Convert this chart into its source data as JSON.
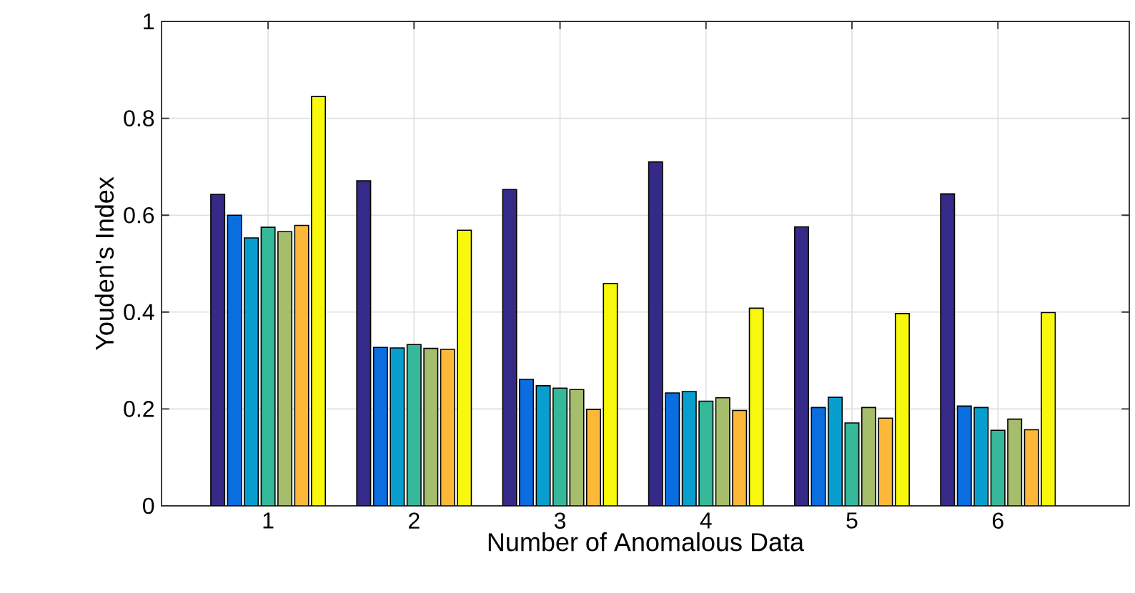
{
  "chart_data": {
    "type": "bar",
    "xlabel": "Number of Anomalous Data",
    "ylabel": "Youden's Index",
    "categories": [
      "1",
      "2",
      "3",
      "4",
      "5",
      "6"
    ],
    "series": [
      {
        "color": "#352a87",
        "values": [
          0.643,
          0.671,
          0.653,
          0.71,
          0.576,
          0.644
        ]
      },
      {
        "color": "#0a6ee0",
        "values": [
          0.6,
          0.327,
          0.261,
          0.233,
          0.203,
          0.206
        ]
      },
      {
        "color": "#089fcf",
        "values": [
          0.553,
          0.326,
          0.248,
          0.236,
          0.224,
          0.203
        ]
      },
      {
        "color": "#36b89a",
        "values": [
          0.575,
          0.333,
          0.243,
          0.216,
          0.171,
          0.156
        ]
      },
      {
        "color": "#a6bd6c",
        "values": [
          0.566,
          0.325,
          0.24,
          0.223,
          0.203,
          0.179
        ]
      },
      {
        "color": "#fdb83a",
        "values": [
          0.579,
          0.323,
          0.199,
          0.197,
          0.181,
          0.157
        ]
      },
      {
        "color": "#f8f80d",
        "values": [
          0.845,
          0.569,
          0.459,
          0.408,
          0.397,
          0.399
        ]
      }
    ],
    "ylim": [
      0,
      1
    ],
    "yticks": [
      0,
      0.2,
      0.4,
      0.6,
      0.8,
      1
    ],
    "grid": true
  }
}
